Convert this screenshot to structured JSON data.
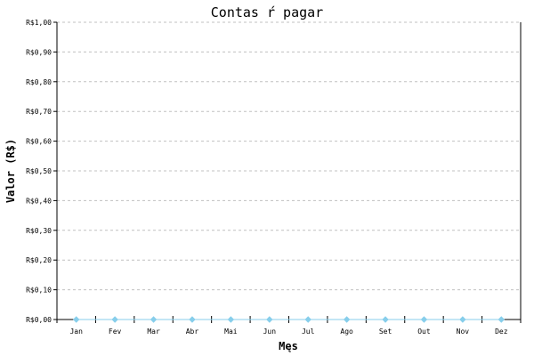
{
  "chart_data": {
    "type": "line",
    "title": "Contas ŕ pagar",
    "xlabel": "Męs",
    "ylabel": "Valor (R$)",
    "categories": [
      "Jan",
      "Fev",
      "Mar",
      "Abr",
      "Mai",
      "Jun",
      "Jul",
      "Ago",
      "Set",
      "Out",
      "Nov",
      "Dez"
    ],
    "values": [
      0,
      0,
      0,
      0,
      0,
      0,
      0,
      0,
      0,
      0,
      0,
      0
    ],
    "ylim": [
      0,
      1.0
    ],
    "yticks": [
      "R$0,00",
      "R$0,10",
      "R$0,20",
      "R$0,30",
      "R$0,40",
      "R$0,50",
      "R$0,60",
      "R$0,70",
      "R$0,80",
      "R$0,90",
      "R$1,00"
    ],
    "grid": "horizontal-dashed",
    "series_color": "#87CEEB",
    "legend": "none"
  }
}
